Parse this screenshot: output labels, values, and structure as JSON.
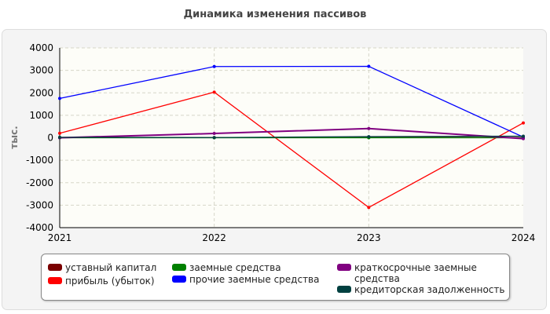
{
  "chart_data": {
    "type": "line",
    "title": "Динамика изменения пассивов",
    "ylabel": "тыс.",
    "xlabel": "",
    "x": [
      "2021",
      "2022",
      "2023",
      "2024"
    ],
    "ylim": [
      -4000,
      4000
    ],
    "yticks": [
      4000,
      3000,
      2000,
      1000,
      0,
      -1000,
      -2000,
      -3000,
      -4000
    ],
    "grid": true,
    "legend_position": "bottom",
    "series": [
      {
        "name": "уставный капитал",
        "color": "#7a0000",
        "values": [
          10,
          10,
          10,
          10
        ]
      },
      {
        "name": "прибыль (убыток)",
        "color": "#ff0000",
        "values": [
          200,
          2030,
          -3100,
          660
        ]
      },
      {
        "name": "заемные средства",
        "color": "#008000",
        "values": [
          0,
          0,
          0,
          0
        ]
      },
      {
        "name": "прочие заемные средства",
        "color": "#0000ff",
        "values": [
          1750,
          3170,
          3180,
          30
        ]
      },
      {
        "name": "краткосрочные заемные средства",
        "color": "#800080",
        "values": [
          0,
          190,
          410,
          -40
        ]
      },
      {
        "name": "кредиторская задолженность",
        "color": "#004040",
        "values": [
          20,
          10,
          50,
          70
        ]
      }
    ]
  }
}
